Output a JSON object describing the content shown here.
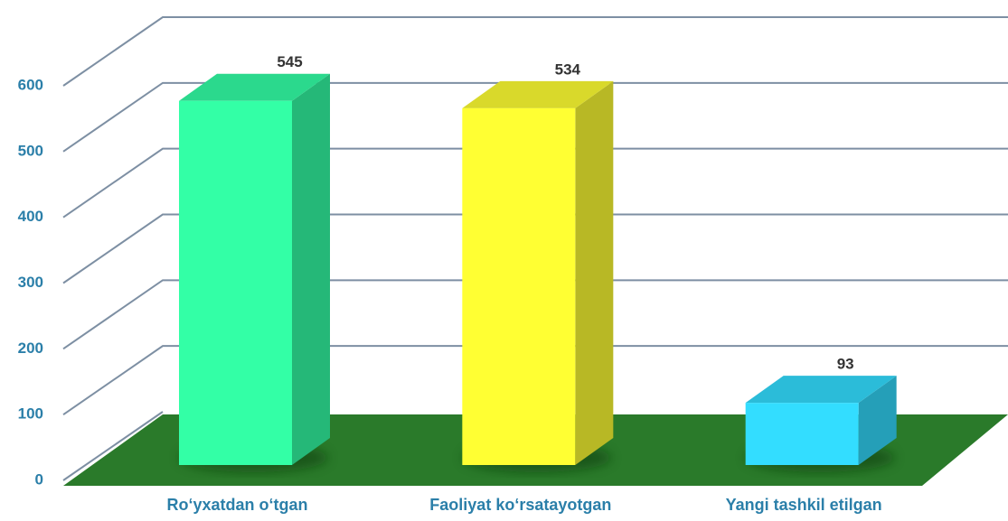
{
  "chart_data": {
    "type": "bar",
    "categories": [
      "Ro‘yxatdan o‘tgan",
      "Faoliyat ko‘rsatayotgan",
      "Yangi tashkil etilgan"
    ],
    "values": [
      545,
      534,
      93
    ],
    "colors": [
      "#33ffa6",
      "#ffff33",
      "#33ddff"
    ],
    "ylim": [
      0,
      600
    ],
    "yticks": [
      0,
      100,
      200,
      300,
      400,
      500,
      600
    ],
    "grid": true
  }
}
